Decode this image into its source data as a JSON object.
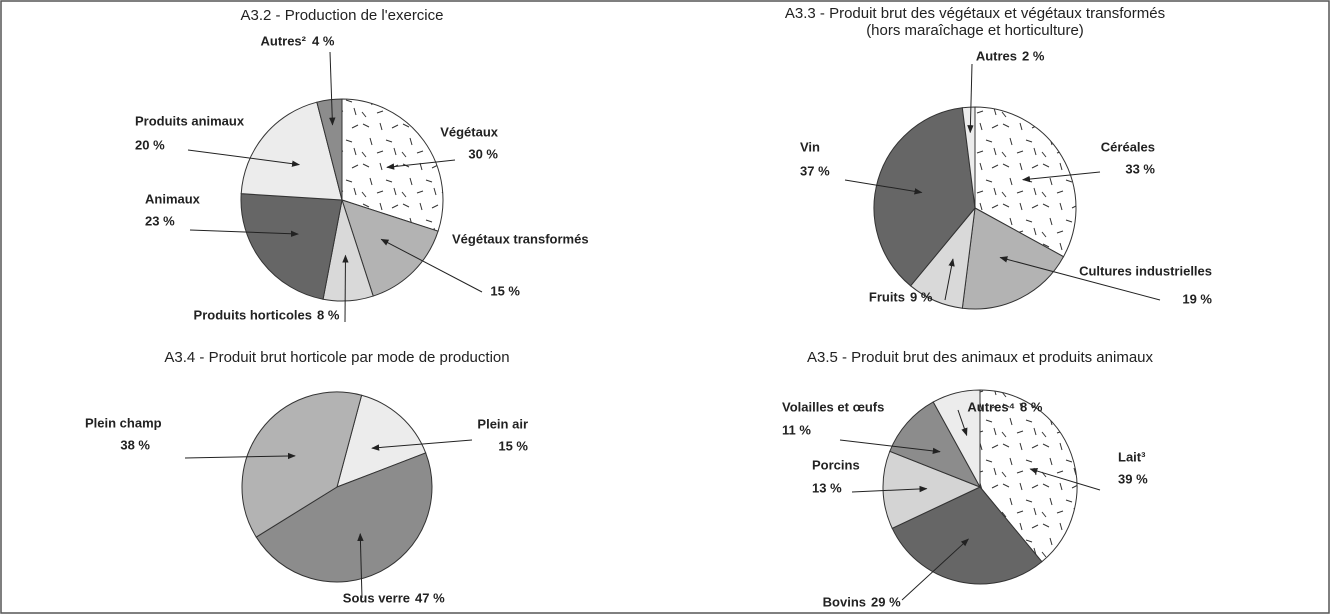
{
  "chart_data": [
    {
      "type": "pie",
      "title": "A3.2 - Production de l'exercice",
      "categories": [
        "Végétaux",
        "Végétaux transformés",
        "Produits horticoles",
        "Animaux",
        "Produits animaux",
        "Autres²"
      ],
      "values": [
        30,
        15,
        8,
        23,
        20,
        4
      ],
      "value_labels": [
        "30 %",
        "15 %",
        "8 %",
        "23 %",
        "20 %",
        "4 %"
      ],
      "colors": [
        "#ffffff",
        "#b3b3b3",
        "#d9d9d9",
        "#666666",
        "#ececec",
        "#8c8c8c"
      ]
    },
    {
      "type": "pie",
      "title": "A3.3 - Produit brut des végétaux et végétaux transformés",
      "subtitle": "(hors maraîchage et horticulture)",
      "categories": [
        "Céréales",
        "Cultures industrielles",
        "Fruits",
        "Vin",
        "Autres"
      ],
      "values": [
        33,
        19,
        9,
        37,
        2
      ],
      "value_labels": [
        "33 %",
        "19 %",
        "9 %",
        "37 %",
        "2 %"
      ],
      "colors": [
        "#ffffff",
        "#b3b3b3",
        "#d9d9d9",
        "#666666",
        "#ececec"
      ]
    },
    {
      "type": "pie",
      "title": "A3.4 - Produit brut horticole par mode de production",
      "categories": [
        "Plein air",
        "Sous verre",
        "Plein champ"
      ],
      "values": [
        15,
        47,
        38
      ],
      "value_labels": [
        "15 %",
        "47 %",
        "38 %"
      ],
      "colors": [
        "#ececec",
        "#8c8c8c",
        "#b3b3b3"
      ]
    },
    {
      "type": "pie",
      "title": "A3.5 - Produit brut des animaux et produits animaux",
      "categories": [
        "Lait³",
        "Bovins",
        "Porcins",
        "Volailles et œufs",
        "Autres⁴"
      ],
      "values": [
        39,
        29,
        13,
        11,
        8
      ],
      "value_labels": [
        "39 %",
        "29 %",
        "13 %",
        "11 %",
        "8 %"
      ],
      "colors": [
        "#ffffff",
        "#666666",
        "#d4d4d4",
        "#8c8c8c",
        "#ececec"
      ]
    }
  ]
}
